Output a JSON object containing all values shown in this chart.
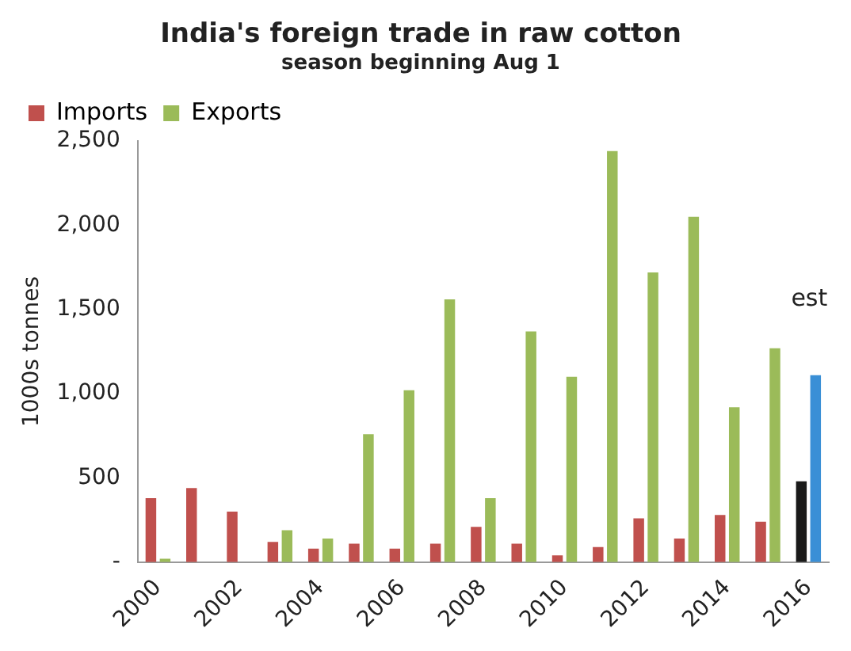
{
  "chart_data": {
    "type": "bar",
    "title": "India's foreign trade in raw cotton",
    "subtitle": "season beginning Aug 1",
    "ylabel": "1000s tonnes",
    "categories": [
      "2000",
      null,
      "2002",
      null,
      "2004",
      null,
      "2006",
      null,
      "2008",
      null,
      "2010",
      null,
      "2012",
      null,
      "2014",
      null,
      "2016"
    ],
    "series": [
      {
        "name": "Imports",
        "color": "#c0504d",
        "colors": [
          "#c0504d",
          "#c0504d",
          "#c0504d",
          "#c0504d",
          "#c0504d",
          "#c0504d",
          "#c0504d",
          "#c0504d",
          "#c0504d",
          "#c0504d",
          "#c0504d",
          "#c0504d",
          "#c0504d",
          "#c0504d",
          "#c0504d",
          "#c0504d",
          "#1a1a1a"
        ],
        "values": [
          380,
          440,
          300,
          120,
          80,
          110,
          80,
          110,
          210,
          110,
          40,
          90,
          260,
          140,
          280,
          240,
          480
        ]
      },
      {
        "name": "Exports",
        "color": "#9bbb59",
        "colors": [
          "#9bbb59",
          "#9bbb59",
          "#9bbb59",
          "#9bbb59",
          "#9bbb59",
          "#9bbb59",
          "#9bbb59",
          "#9bbb59",
          "#9bbb59",
          "#9bbb59",
          "#9bbb59",
          "#9bbb59",
          "#9bbb59",
          "#9bbb59",
          "#9bbb59",
          "#9bbb59",
          "#3a8fd6"
        ],
        "values": [
          20,
          null,
          null,
          190,
          140,
          760,
          1020,
          1560,
          380,
          1370,
          1100,
          2440,
          1720,
          2050,
          920,
          1270,
          1110
        ]
      }
    ],
    "annotations": [
      {
        "text": "est",
        "x": "2016",
        "y": 1110
      }
    ],
    "ylim": [
      0,
      2500
    ],
    "yticks": [
      {
        "value": 0,
        "label": "-"
      },
      {
        "value": 500,
        "label": "500"
      },
      {
        "value": 1000,
        "label": "1,000"
      },
      {
        "value": 1500,
        "label": "1,500"
      },
      {
        "value": 2000,
        "label": "2,000"
      },
      {
        "value": 2500,
        "label": "2,500"
      }
    ],
    "grid": false,
    "legend": "top left"
  }
}
